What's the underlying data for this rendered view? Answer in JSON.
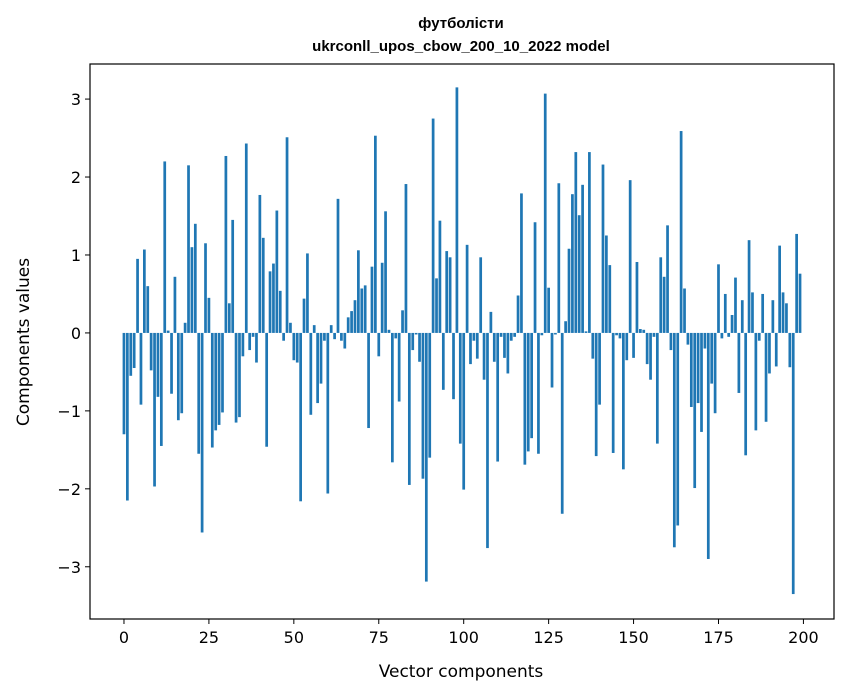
{
  "chart_data": {
    "type": "bar",
    "title": "футболісти",
    "subtitle": "ukrconll_upos_cbow_200_10_2022 model",
    "xlabel": "Vector components",
    "ylabel": "Components values",
    "xlim": [
      -10,
      209
    ],
    "ylim": [
      -3.67,
      3.45
    ],
    "xticks": [
      0,
      25,
      50,
      75,
      100,
      125,
      150,
      175,
      200
    ],
    "yticks": [
      -3,
      -2,
      -1,
      0,
      1,
      2,
      3
    ],
    "ytick_labels": [
      "−3",
      "−2",
      "−1",
      "0",
      "1",
      "2",
      "3"
    ],
    "grid": false,
    "bar_color": "#1f77b4",
    "series": [
      {
        "values": [
          -1.3,
          -2.15,
          -0.55,
          -0.45,
          0.95,
          -0.92,
          1.07,
          0.6,
          -0.48,
          -1.97,
          -0.82,
          -1.45,
          2.2,
          0.03,
          -0.78,
          0.72,
          -1.12,
          -1.03,
          0.13,
          2.15,
          1.1,
          1.4,
          -1.55,
          -2.56,
          1.15,
          0.45,
          -1.47,
          -1.25,
          -1.18,
          -1.02,
          2.27,
          0.38,
          1.45,
          -1.15,
          -1.08,
          -0.3,
          2.43,
          -0.22,
          -0.05,
          -0.38,
          1.77,
          1.22,
          -1.46,
          0.79,
          0.89,
          1.57,
          0.54,
          -0.1,
          2.51,
          0.13,
          -0.35,
          -0.38,
          -2.16,
          0.44,
          1.02,
          -1.05,
          0.1,
          -0.9,
          -0.65,
          -0.1,
          -2.06,
          0.1,
          -0.08,
          1.72,
          -0.1,
          -0.2,
          0.2,
          0.28,
          0.42,
          1.06,
          0.57,
          0.61,
          -1.22,
          0.85,
          2.53,
          -0.3,
          0.9,
          1.56,
          0.04,
          -1.66,
          -0.07,
          -0.88,
          0.29,
          1.91,
          -1.95,
          -0.22,
          -0.02,
          -0.37,
          -1.87,
          -3.19,
          -1.6,
          2.75,
          0.7,
          1.44,
          -0.73,
          1.05,
          0.97,
          -0.85,
          3.15,
          -1.42,
          -2.01,
          1.13,
          -0.4,
          -0.1,
          -0.33,
          0.97,
          -0.6,
          -2.76,
          0.27,
          -0.37,
          -1.65,
          -0.05,
          -0.32,
          -0.52,
          -0.1,
          -0.05,
          0.48,
          1.79,
          -1.69,
          -1.52,
          -1.35,
          1.42,
          -1.55,
          -0.03,
          3.07,
          0.58,
          -0.7,
          -0.02,
          1.92,
          -2.32,
          0.15,
          1.08,
          1.78,
          2.32,
          1.51,
          1.9,
          0.02,
          2.32,
          -0.33,
          -1.58,
          -0.92,
          2.16,
          1.25,
          0.87,
          -1.54,
          -0.03,
          -0.07,
          -1.75,
          -0.35,
          1.96,
          -0.32,
          0.91,
          0.05,
          0.04,
          -0.4,
          -0.6,
          -0.05,
          -1.42,
          0.97,
          0.72,
          1.38,
          -0.22,
          -2.75,
          -2.47,
          2.59,
          0.57,
          -0.15,
          -0.95,
          -1.99,
          -0.9,
          -1.27,
          -0.2,
          -2.9,
          -0.65,
          -1.03,
          0.88,
          -0.07,
          0.5,
          -0.05,
          0.23,
          0.71,
          -0.77,
          0.42,
          -1.57,
          1.19,
          0.52,
          -1.25,
          -0.1,
          0.5,
          -1.14,
          -0.52,
          0.42,
          -0.43,
          1.12,
          0.52,
          0.38,
          -0.44,
          -3.35,
          1.27,
          0.76
        ]
      }
    ]
  }
}
